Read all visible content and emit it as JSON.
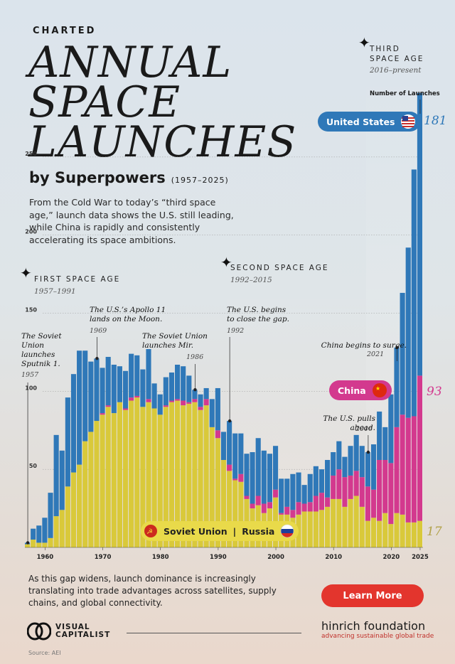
{
  "header": {
    "kicker": "CHARTED",
    "title_lines": [
      "ANNUAL",
      "SPACE",
      "LAUNCHES"
    ],
    "subtitle": "by Superpowers",
    "years": "(1957–2025)"
  },
  "intro": "From the Cold War to today’s “third space age,” launch data shows the U.S. still leading, while China is rapidly and consistently accelerating its space ambitions.",
  "eras": [
    {
      "name": "FIRST SPACE AGE",
      "years": "1957–1991"
    },
    {
      "name": "SECOND SPACE AGE",
      "years": "1992–2015"
    },
    {
      "name": "THIRD SPACE AGE",
      "years": "2016–present"
    }
  ],
  "annotations": [
    {
      "text": "The Soviet Union launches Sputnik 1.",
      "year": "1957"
    },
    {
      "text": "The U.S.’s Apollo 11 lands on the Moon.",
      "year": "1969"
    },
    {
      "text": "The Soviet Union launches Mir.",
      "year": "1986"
    },
    {
      "text": "The U.S. begins to close the gap.",
      "year": "1992"
    },
    {
      "text": "China begins to surge.",
      "year": "2021"
    },
    {
      "text": "The U.S. pulls ahead.",
      "year": "2016"
    }
  ],
  "labels": {
    "number_of_launches": "Number of Launches",
    "us": "United States",
    "china": "China",
    "soviet": "Soviet Union",
    "sep": "|",
    "russia": "Russia",
    "us_2025": "181",
    "china_2025": "93",
    "russia_2025": "17"
  },
  "footer": {
    "text": "As this gap widens, launch dominance is increasingly translating into trade advantages across satellites, supply chains, and global connectivity.",
    "button": "Learn More",
    "vc": "VISUAL CAPITALIST",
    "hf_name": "hinrich foundation",
    "hf_tag": "advancing sustainable global trade",
    "source": "Source: AEI"
  },
  "colors": {
    "us": "#2f78b8",
    "china": "#d3398e",
    "soviet": "#d9c93a",
    "button": "#e3352d"
  },
  "chart_data": {
    "type": "bar",
    "stacked": true,
    "x": [
      1957,
      1958,
      1959,
      1960,
      1961,
      1962,
      1963,
      1964,
      1965,
      1966,
      1967,
      1968,
      1969,
      1970,
      1971,
      1972,
      1973,
      1974,
      1975,
      1976,
      1977,
      1978,
      1979,
      1980,
      1981,
      1982,
      1983,
      1984,
      1985,
      1986,
      1987,
      1988,
      1989,
      1990,
      1991,
      1992,
      1993,
      1994,
      1995,
      1996,
      1997,
      1998,
      1999,
      2000,
      2001,
      2002,
      2003,
      2004,
      2005,
      2006,
      2007,
      2008,
      2009,
      2010,
      2011,
      2012,
      2013,
      2014,
      2015,
      2016,
      2017,
      2018,
      2019,
      2020,
      2021,
      2022,
      2023,
      2024,
      2025
    ],
    "series": [
      {
        "name": "Soviet Union | Russia",
        "values": [
          2,
          5,
          3,
          3,
          6,
          20,
          24,
          39,
          48,
          53,
          68,
          74,
          81,
          85,
          90,
          86,
          93,
          88,
          94,
          96,
          90,
          93,
          89,
          85,
          90,
          93,
          94,
          91,
          92,
          93,
          88,
          91,
          77,
          70,
          56,
          49,
          43,
          42,
          31,
          25,
          27,
          22,
          25,
          32,
          21,
          21,
          19,
          21,
          23,
          23,
          23,
          24,
          26,
          31,
          31,
          26,
          31,
          33,
          26,
          17,
          19,
          17,
          22,
          15,
          22,
          21,
          16,
          16,
          17
        ]
      },
      {
        "name": "China",
        "values": [
          0,
          0,
          0,
          0,
          0,
          0,
          0,
          0,
          0,
          0,
          0,
          0,
          0,
          1,
          1,
          0,
          0,
          1,
          2,
          1,
          0,
          2,
          0,
          0,
          1,
          1,
          1,
          3,
          1,
          2,
          2,
          4,
          0,
          5,
          0,
          4,
          1,
          5,
          2,
          3,
          6,
          6,
          4,
          5,
          1,
          5,
          5,
          8,
          5,
          6,
          10,
          11,
          6,
          15,
          19,
          19,
          15,
          16,
          19,
          22,
          18,
          39,
          34,
          39,
          55,
          64,
          67,
          68,
          93
        ]
      },
      {
        "name": "United States",
        "values": [
          1,
          7,
          11,
          16,
          29,
          52,
          38,
          57,
          63,
          73,
          58,
          45,
          40,
          29,
          31,
          31,
          23,
          24,
          28,
          26,
          24,
          32,
          16,
          13,
          18,
          18,
          22,
          22,
          17,
          6,
          8,
          7,
          18,
          27,
          18,
          28,
          29,
          26,
          27,
          33,
          37,
          34,
          31,
          28,
          22,
          18,
          23,
          19,
          12,
          18,
          19,
          15,
          24,
          15,
          18,
          13,
          19,
          23,
          20,
          22,
          29,
          31,
          21,
          44,
          51,
          78,
          109,
          158,
          181
        ]
      }
    ],
    "xticks": [
      1960,
      1970,
      1980,
      1990,
      2000,
      2010,
      2020,
      2025
    ],
    "yticks": [
      50,
      100,
      150,
      200,
      250
    ],
    "ylim": [
      0,
      290
    ],
    "ylabel": "Number of Launches"
  }
}
